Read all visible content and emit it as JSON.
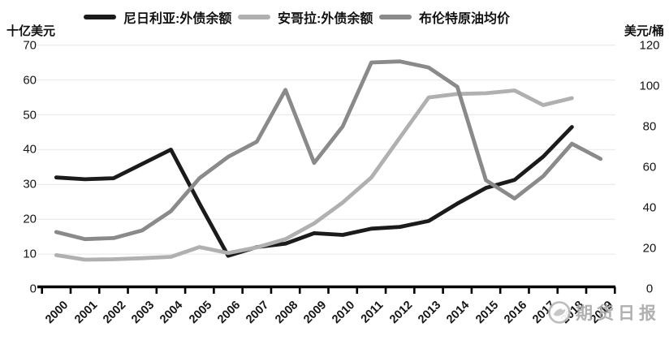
{
  "page": {
    "background": "#ffffff"
  },
  "legend": {
    "items": [
      {
        "label": "尼日利亚:外债余额",
        "color": "#1b1b1b"
      },
      {
        "label": "安哥拉:外债余额",
        "color": "#b0b0b0"
      },
      {
        "label": "布伦特原油均价",
        "color": "#8a8a8a"
      }
    ]
  },
  "axes": {
    "left_unit": "十亿美元",
    "right_unit": "美元/桶"
  },
  "watermark": {
    "logo_icon": "futures-daily-logo",
    "text": "期货日报",
    "color": "#aaaaaa"
  },
  "chart_data": {
    "type": "line",
    "x": [
      2000,
      2001,
      2002,
      2003,
      2004,
      2005,
      2006,
      2007,
      2008,
      2009,
      2010,
      2011,
      2012,
      2013,
      2014,
      2015,
      2016,
      2017,
      2018,
      2019
    ],
    "series": [
      {
        "name": "尼日利亚:外债余额",
        "axis": "left",
        "color": "#1b1b1b",
        "values": [
          32,
          31.5,
          31.8,
          35.9,
          40,
          24.5,
          9.5,
          12,
          13,
          16,
          15.5,
          17.3,
          17.8,
          19.5,
          24.5,
          29,
          31.3,
          38,
          46.5,
          null
        ]
      },
      {
        "name": "安哥拉:外债余额",
        "axis": "left",
        "color": "#b0b0b0",
        "values": [
          9.7,
          8.4,
          8.5,
          8.8,
          9.2,
          12,
          10.3,
          11.9,
          14.3,
          18.8,
          24.8,
          32,
          43.5,
          55,
          56,
          56.2,
          57,
          52.8,
          54.8,
          null
        ]
      },
      {
        "name": "布伦特原油均价",
        "axis": "right",
        "color": "#8a8a8a",
        "values": [
          28,
          24.5,
          25,
          28.8,
          38.3,
          54.5,
          65,
          72.5,
          98,
          62,
          80,
          111.5,
          112,
          109,
          99.5,
          53.5,
          44.5,
          55.5,
          71.5,
          64
        ]
      }
    ],
    "left_axis": {
      "label": "十亿美元",
      "min": 0,
      "max": 70,
      "tick_step": 10,
      "ticks": [
        0,
        10,
        20,
        30,
        40,
        50,
        60,
        70
      ]
    },
    "right_axis": {
      "label": "美元/桶",
      "min": 0,
      "max": 120,
      "tick_step": 20,
      "ticks": [
        0,
        20,
        40,
        60,
        80,
        100,
        120
      ]
    },
    "grid": "horizontal",
    "legend_position": "top"
  }
}
